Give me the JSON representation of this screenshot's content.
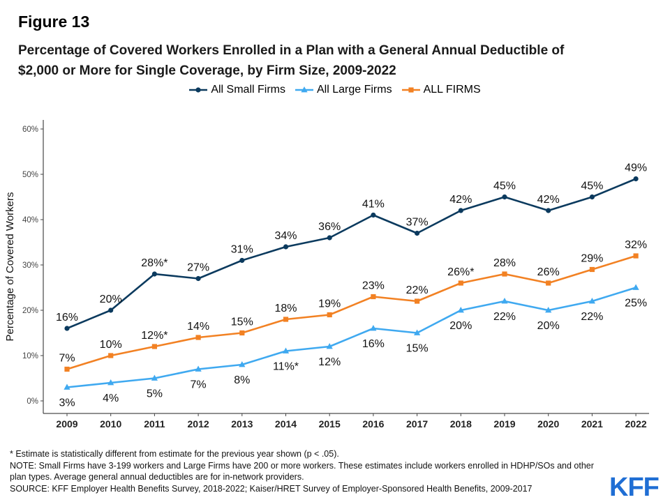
{
  "figure_label": "Figure 13",
  "title_line1": "Percentage of Covered Workers Enrolled in a Plan with a General Annual Deductible of",
  "title_line2": "$2,000 or More for Single Coverage, by Firm Size, 2009-2022",
  "chart_data": {
    "type": "line",
    "x": [
      "2009",
      "2010",
      "2011",
      "2012",
      "2013",
      "2014",
      "2015",
      "2016",
      "2017",
      "2018",
      "2019",
      "2020",
      "2021",
      "2022"
    ],
    "ylabel": "Percentage of Covered Workers",
    "xlabel": "",
    "ylim": [
      0,
      60
    ],
    "yticks": [
      "0%",
      "10%",
      "20%",
      "30%",
      "40%",
      "50%",
      "60%"
    ],
    "grid": false,
    "legend_position": "top",
    "series": [
      {
        "name": "All Small Firms",
        "color": "#0b3a5e",
        "marker": "circle",
        "values": [
          16,
          20,
          28,
          27,
          31,
          34,
          36,
          41,
          37,
          42,
          45,
          42,
          45,
          49
        ],
        "labels": [
          "16%",
          "20%",
          "28%*",
          "27%",
          "31%",
          "34%",
          "36%",
          "41%",
          "37%",
          "42%",
          "45%",
          "42%",
          "45%",
          "49%"
        ],
        "label_side": [
          "above",
          "above",
          "above",
          "above",
          "above",
          "above",
          "above",
          "above",
          "above",
          "above",
          "above",
          "above",
          "above",
          "above"
        ]
      },
      {
        "name": "All Large Firms",
        "color": "#3fa9f0",
        "marker": "triangle",
        "values": [
          3,
          4,
          5,
          7,
          8,
          11,
          12,
          16,
          15,
          20,
          22,
          20,
          22,
          25
        ],
        "labels": [
          "3%",
          "4%",
          "5%",
          "7%",
          "8%",
          "11%*",
          "12%",
          "16%",
          "15%",
          "20%",
          "22%",
          "20%",
          "22%",
          "25%"
        ],
        "label_side": [
          "below",
          "below",
          "below",
          "below",
          "below",
          "below",
          "below",
          "below",
          "below",
          "below",
          "below",
          "below",
          "below",
          "below"
        ]
      },
      {
        "name": "ALL FIRMS",
        "color": "#f28123",
        "marker": "square",
        "values": [
          7,
          10,
          12,
          14,
          15,
          18,
          19,
          23,
          22,
          26,
          28,
          26,
          29,
          32
        ],
        "labels": [
          "7%",
          "10%",
          "12%*",
          "14%",
          "15%",
          "18%",
          "19%",
          "23%",
          "22%",
          "26%*",
          "28%",
          "26%",
          "29%",
          "32%"
        ],
        "label_side": [
          "above",
          "above",
          "above",
          "above",
          "above",
          "above",
          "above",
          "above",
          "above",
          "above",
          "above",
          "above",
          "above",
          "above"
        ]
      }
    ]
  },
  "footnotes": {
    "line1": "* Estimate is statistically different from estimate for the previous year shown (p < .05).",
    "line2": "NOTE: Small Firms have 3-199 workers and Large Firms have 200 or more workers. These estimates include workers enrolled in HDHP/SOs and other plan types. Average general annual deductibles are for in-network providers.",
    "line3": "SOURCE: KFF Employer Health Benefits Survey, 2018-2022; Kaiser/HRET Survey of Employer-Sponsored Health Benefits, 2009-2017"
  },
  "logo_text": "KFF"
}
